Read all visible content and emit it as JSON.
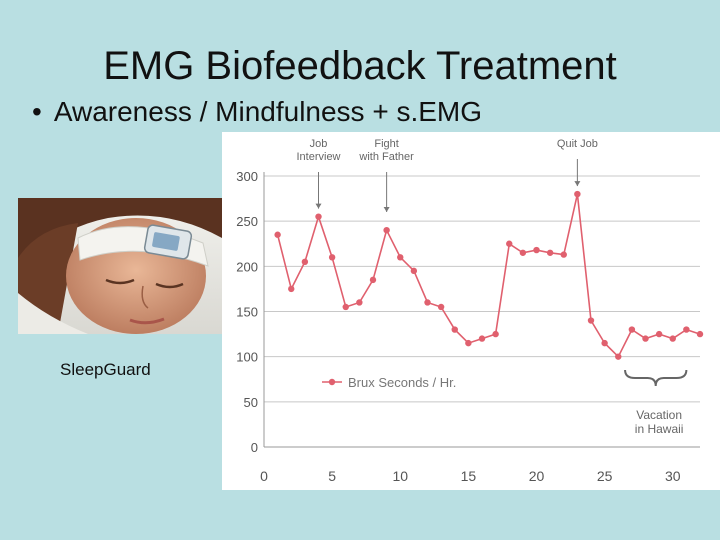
{
  "slide": {
    "title": "EMG Biofeedback Treatment",
    "bullet": "Awareness / Mindfulness + s.EMG",
    "photo_caption": "SleepGuard"
  },
  "chart_data": {
    "type": "line",
    "title": "",
    "xlabel": "",
    "ylabel": "",
    "xlim": [
      0,
      32
    ],
    "ylim": [
      0,
      300
    ],
    "x_ticks": [
      0,
      5,
      10,
      15,
      20,
      25,
      30
    ],
    "y_ticks": [
      0,
      50,
      100,
      150,
      200,
      250,
      300
    ],
    "grid": "horizontal",
    "legend": "center",
    "color": "#e0606e",
    "series": [
      {
        "name": "Brux Seconds / Hr.",
        "x": [
          1,
          2,
          3,
          4,
          5,
          6,
          7,
          8,
          9,
          10,
          11,
          12,
          13,
          14,
          15,
          16,
          17,
          18,
          19,
          20,
          21,
          22,
          23,
          24,
          25,
          26,
          27,
          28,
          29,
          30,
          31,
          32
        ],
        "y": [
          235,
          175,
          205,
          255,
          210,
          155,
          160,
          185,
          240,
          210,
          195,
          160,
          155,
          130,
          115,
          120,
          125,
          225,
          215,
          218,
          215,
          213,
          280,
          140,
          115,
          100,
          130,
          120,
          125,
          120,
          130,
          125
        ]
      }
    ],
    "annotations": [
      {
        "x": 4,
        "lines": [
          "Job",
          "Interview"
        ],
        "arrow": true
      },
      {
        "x": 9,
        "lines": [
          "Fight",
          "with Father"
        ],
        "arrow": true
      },
      {
        "x": 23,
        "lines": [
          "Quit Job"
        ],
        "arrow": true
      },
      {
        "x": 29,
        "lines": [
          "Vacation",
          "in Hawaii"
        ],
        "brace_from": 26.5,
        "brace_to": 31
      }
    ]
  }
}
